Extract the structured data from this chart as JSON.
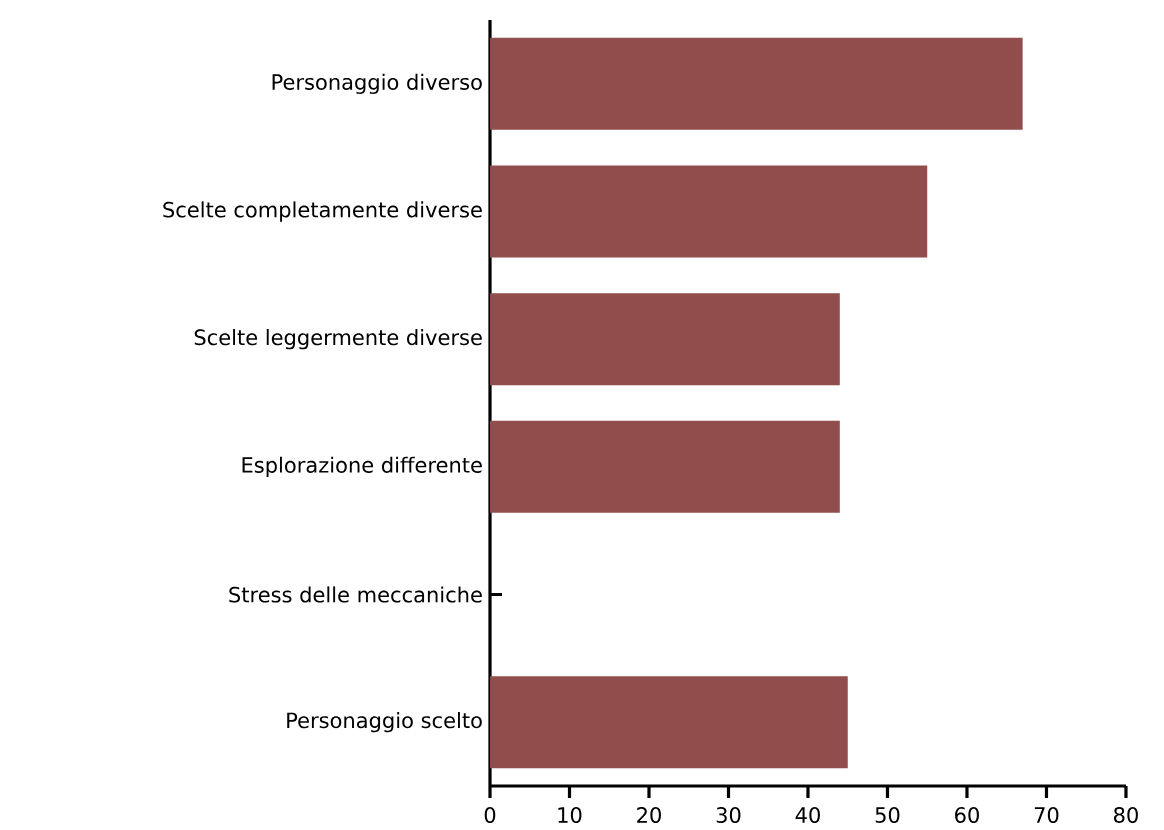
{
  "chart_data": {
    "type": "bar",
    "orientation": "horizontal",
    "categories": [
      "Personaggio diverso",
      "Scelte completamente diverse",
      "Scelte leggermente diverse",
      "Esplorazione differente",
      "Stress delle meccaniche",
      "Personaggio scelto"
    ],
    "values": [
      67,
      55,
      44,
      44,
      0,
      45
    ],
    "color": "#914c4c",
    "xlim": [
      0,
      80
    ],
    "xticks": [
      0,
      10,
      20,
      30,
      40,
      50,
      60,
      70,
      80
    ],
    "grid": false
  }
}
